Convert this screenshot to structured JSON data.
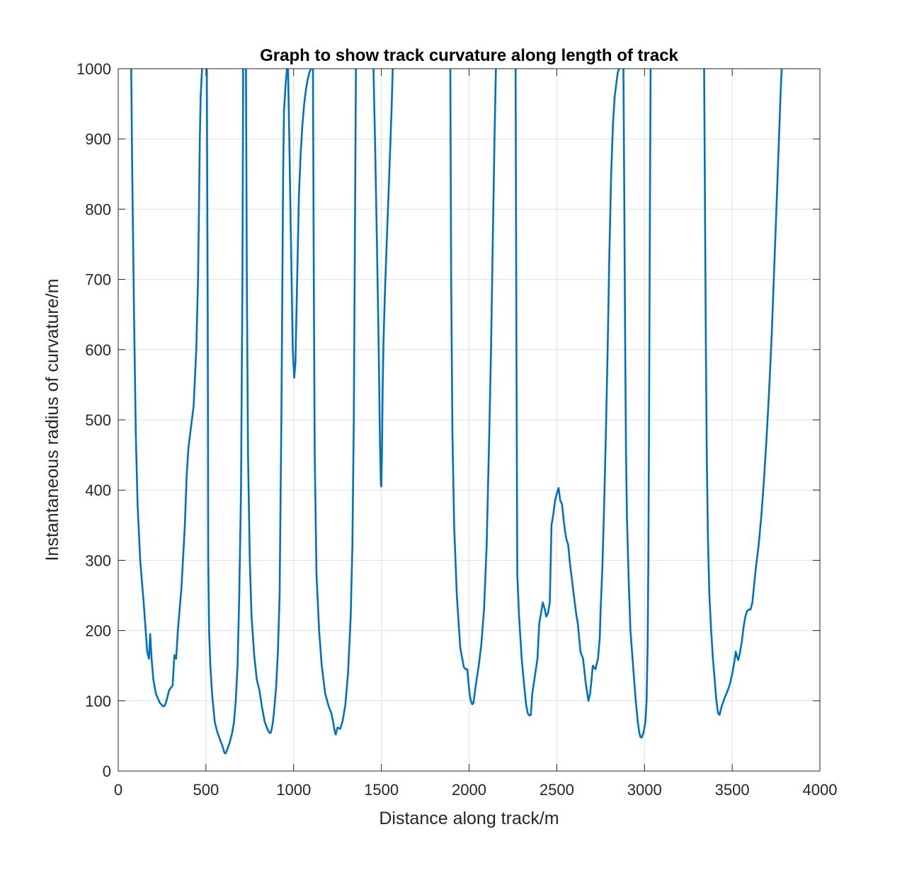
{
  "chart_data": {
    "type": "line",
    "title": "Graph to show track curvature along length of track",
    "xlabel": "Distance along track/m",
    "ylabel": "Instantaneous radius of curvature/m",
    "xlim": [
      0,
      4000
    ],
    "ylim": [
      0,
      1000
    ],
    "xticks": [
      0,
      500,
      1000,
      1500,
      2000,
      2500,
      3000,
      3500,
      4000
    ],
    "xtick_labels": [
      "0",
      "500",
      "1000",
      "1500",
      "2000",
      "2500",
      "3000",
      "3500",
      "4000"
    ],
    "yticks": [
      0,
      100,
      200,
      300,
      400,
      500,
      600,
      700,
      800,
      900,
      1000
    ],
    "ytick_labels": [
      "0",
      "100",
      "200",
      "300",
      "400",
      "500",
      "600",
      "700",
      "800",
      "900",
      "1000"
    ],
    "grid": true,
    "line_color": "#0072BD",
    "series": [
      {
        "x": [
          74,
          80,
          90,
          100,
          110,
          125,
          145,
          165,
          175,
          182,
          190,
          200,
          215,
          235,
          255,
          265,
          275,
          290,
          310,
          320,
          330,
          340,
          360,
          380,
          390,
          400,
          415,
          430,
          445,
          455,
          460,
          465,
          470,
          478
        ],
        "y": [
          1000,
          850,
          650,
          480,
          380,
          300,
          240,
          170,
          160,
          195,
          160,
          130,
          110,
          98,
          92,
          93,
          100,
          115,
          122,
          165,
          160,
          200,
          260,
          350,
          420,
          460,
          490,
          520,
          600,
          700,
          800,
          900,
          960,
          1000
        ]
      },
      {
        "x": [
          505,
          510,
          513,
          518,
          525,
          535,
          550,
          565,
          580,
          595,
          605,
          612,
          620,
          635,
          650,
          660,
          670,
          680,
          690,
          700,
          708,
          712
        ],
        "y": [
          1000,
          650,
          300,
          200,
          150,
          110,
          70,
          55,
          45,
          35,
          26,
          25,
          30,
          40,
          55,
          70,
          100,
          150,
          250,
          400,
          700,
          1000
        ]
      },
      {
        "x": [
          728,
          733,
          740,
          750,
          760,
          775,
          790,
          805,
          820,
          835,
          850,
          860,
          868,
          875,
          882,
          890,
          900,
          910,
          920,
          930,
          940,
          945,
          955,
          962
        ],
        "y": [
          1000,
          700,
          450,
          300,
          220,
          165,
          130,
          115,
          90,
          70,
          60,
          55,
          54,
          60,
          70,
          90,
          120,
          170,
          250,
          500,
          850,
          940,
          980,
          1000
        ]
      },
      {
        "x": [
          968,
          975,
          985,
          995,
          1003,
          1010,
          1020,
          1030,
          1040,
          1050,
          1060,
          1070,
          1080,
          1090,
          1098
        ],
        "y": [
          1000,
          900,
          750,
          600,
          560,
          580,
          700,
          820,
          880,
          920,
          950,
          970,
          985,
          995,
          1000
        ]
      },
      {
        "x": [
          1110,
          1115,
          1120,
          1130,
          1145,
          1160,
          1180,
          1200,
          1215,
          1225,
          1235,
          1240,
          1250,
          1265,
          1280,
          1295,
          1310,
          1325,
          1335,
          1343,
          1350,
          1355
        ],
        "y": [
          1000,
          700,
          450,
          280,
          200,
          150,
          110,
          92,
          82,
          70,
          55,
          52,
          62,
          60,
          72,
          95,
          140,
          220,
          320,
          500,
          800,
          1000
        ]
      },
      {
        "x": [
          1455,
          1465,
          1475,
          1485,
          1492,
          1497,
          1500,
          1503,
          1507,
          1512,
          1520,
          1530,
          1545,
          1558,
          1565
        ],
        "y": [
          1000,
          880,
          750,
          600,
          470,
          410,
          405,
          450,
          540,
          610,
          680,
          750,
          850,
          940,
          1000
        ]
      },
      {
        "x": [
          1893,
          1898,
          1905,
          1915,
          1930,
          1950,
          1970,
          1980,
          1990,
          1995,
          2003,
          2010,
          2018,
          2025,
          2032,
          2040,
          2055,
          2070,
          2085,
          2100,
          2115,
          2125,
          2135,
          2145,
          2153
        ],
        "y": [
          1000,
          700,
          480,
          350,
          250,
          175,
          148,
          145,
          145,
          130,
          110,
          100,
          95,
          97,
          110,
          125,
          150,
          180,
          230,
          320,
          480,
          600,
          750,
          900,
          1000
        ]
      },
      {
        "x": [
          2265,
          2270,
          2275,
          2285,
          2300,
          2315,
          2325,
          2335,
          2345,
          2352,
          2360,
          2375,
          2390,
          2400,
          2410,
          2420,
          2430,
          2440,
          2450,
          2460,
          2470,
          2480,
          2490,
          2500,
          2510,
          2520,
          2530,
          2540,
          2548,
          2555,
          2565,
          2575,
          2590,
          2600,
          2610,
          2620,
          2635,
          2650,
          2665,
          2680,
          2690,
          2700,
          2705,
          2720,
          2735,
          2745,
          2750,
          2760,
          2770,
          2780,
          2790,
          2800,
          2810,
          2820,
          2830,
          2840,
          2848,
          2855
        ],
        "y": [
          1000,
          600,
          280,
          220,
          160,
          120,
          95,
          82,
          79,
          80,
          110,
          135,
          160,
          210,
          225,
          240,
          232,
          220,
          225,
          240,
          350,
          365,
          385,
          395,
          403,
          385,
          380,
          355,
          340,
          330,
          322,
          295,
          265,
          245,
          225,
          210,
          170,
          160,
          125,
          100,
          110,
          135,
          150,
          145,
          160,
          190,
          230,
          290,
          380,
          480,
          600,
          740,
          850,
          920,
          960,
          980,
          995,
          1000
        ]
      },
      {
        "x": [
          2880,
          2885,
          2890,
          2895,
          2900,
          2910,
          2920,
          2935,
          2950,
          2962,
          2970,
          2978,
          2985,
          2995,
          3005,
          3012,
          3018,
          3022,
          3026,
          3030,
          3035
        ],
        "y": [
          1000,
          800,
          600,
          450,
          360,
          270,
          200,
          150,
          100,
          70,
          55,
          48,
          48,
          55,
          70,
          100,
          180,
          300,
          500,
          750,
          1000
        ]
      },
      {
        "x": [
          3340,
          3345,
          3350,
          3355,
          3362,
          3370,
          3380,
          3390,
          3400,
          3408,
          3415,
          3420,
          3428,
          3440,
          3455,
          3470,
          3485,
          3500,
          3512,
          3520,
          3528,
          3535,
          3545,
          3555,
          3565,
          3575,
          3585,
          3595,
          3605,
          3615,
          3625,
          3635,
          3650,
          3665,
          3680,
          3695,
          3710,
          3725,
          3740,
          3755,
          3765,
          3775,
          3782
        ],
        "y": [
          1000,
          800,
          600,
          450,
          330,
          250,
          200,
          160,
          130,
          105,
          90,
          82,
          80,
          92,
          103,
          112,
          122,
          138,
          155,
          170,
          162,
          158,
          170,
          185,
          205,
          220,
          228,
          230,
          230,
          240,
          265,
          290,
          320,
          360,
          410,
          470,
          540,
          620,
          720,
          820,
          890,
          960,
          1000
        ]
      }
    ]
  }
}
